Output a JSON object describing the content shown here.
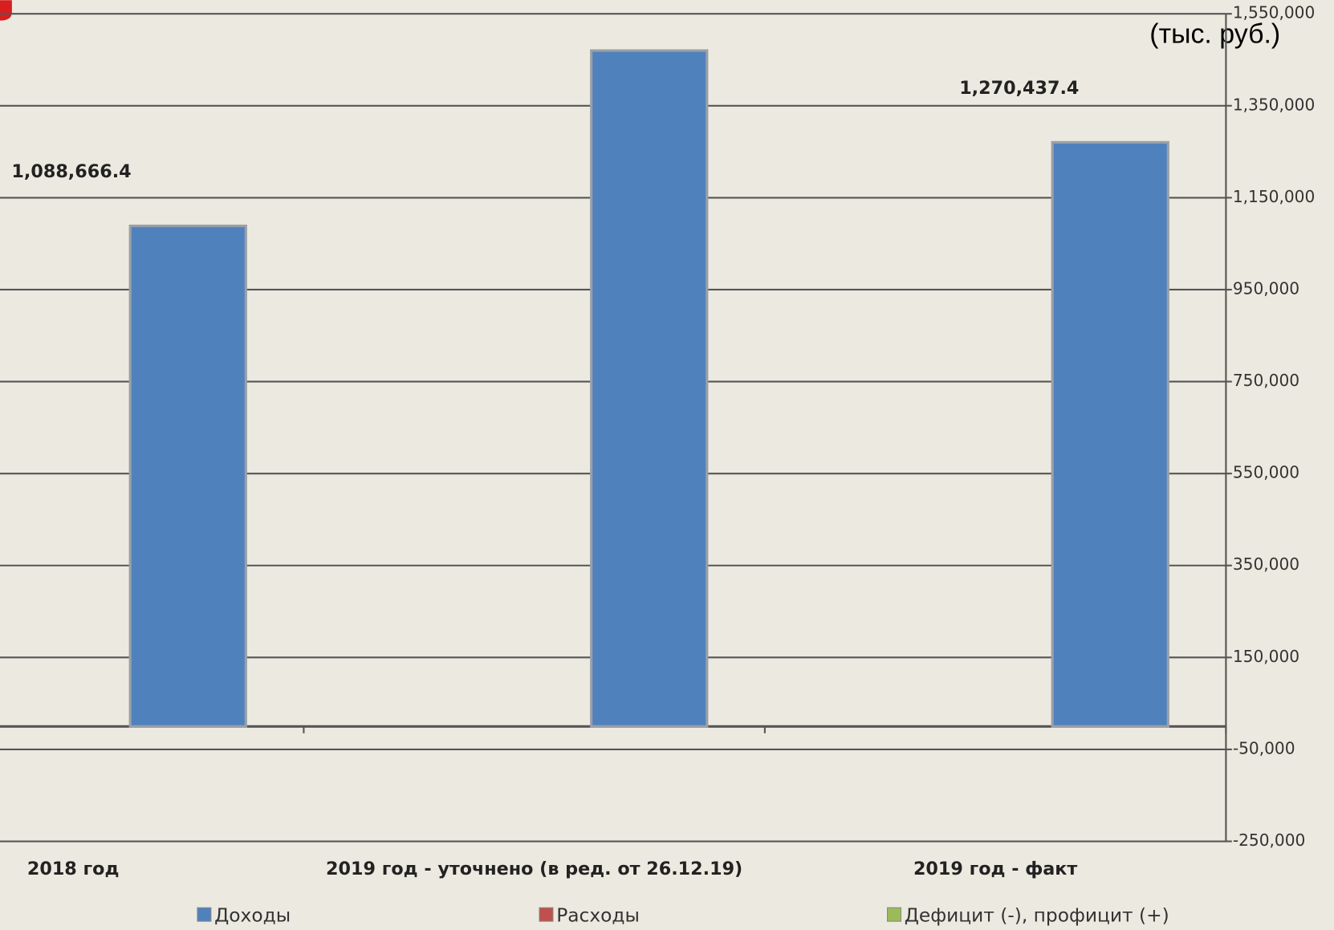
{
  "chart_data": {
    "type": "bar",
    "unit_note": "(тыс. руб.)",
    "categories": [
      "2018 год",
      "2019 год - уточнено (в ред. от 26.12.19)",
      "2019 год - факт"
    ],
    "series": [
      {
        "name": "Доходы",
        "color": "#4f81bd",
        "values": [
          1088666.4,
          1470000,
          1270437.4
        ],
        "value_labels": [
          "1,088,666.4",
          null,
          "1,270,437.4"
        ]
      },
      {
        "name": "Расходы",
        "color": "#c0504d",
        "values": [
          null,
          null,
          null
        ]
      },
      {
        "name": "Дефицит (-), профицит (+)",
        "color": "#9bbb59",
        "values": [
          null,
          null,
          null
        ]
      }
    ],
    "ylim": [
      -250000,
      1550000
    ],
    "yticks": [
      {
        "value": -250000,
        "label": "-250,000"
      },
      {
        "value": -50000,
        "label": "-50,000"
      },
      {
        "value": 150000,
        "label": "150,000"
      },
      {
        "value": 350000,
        "label": "350,000"
      },
      {
        "value": 550000,
        "label": "550,000"
      },
      {
        "value": 750000,
        "label": "750,000"
      },
      {
        "value": 950000,
        "label": "950,000"
      },
      {
        "value": 1150000,
        "label": "1,150,000"
      },
      {
        "value": 1350000,
        "label": "1,350,000"
      },
      {
        "value": 1550000,
        "label": "1,550,000"
      }
    ],
    "grid": true
  }
}
